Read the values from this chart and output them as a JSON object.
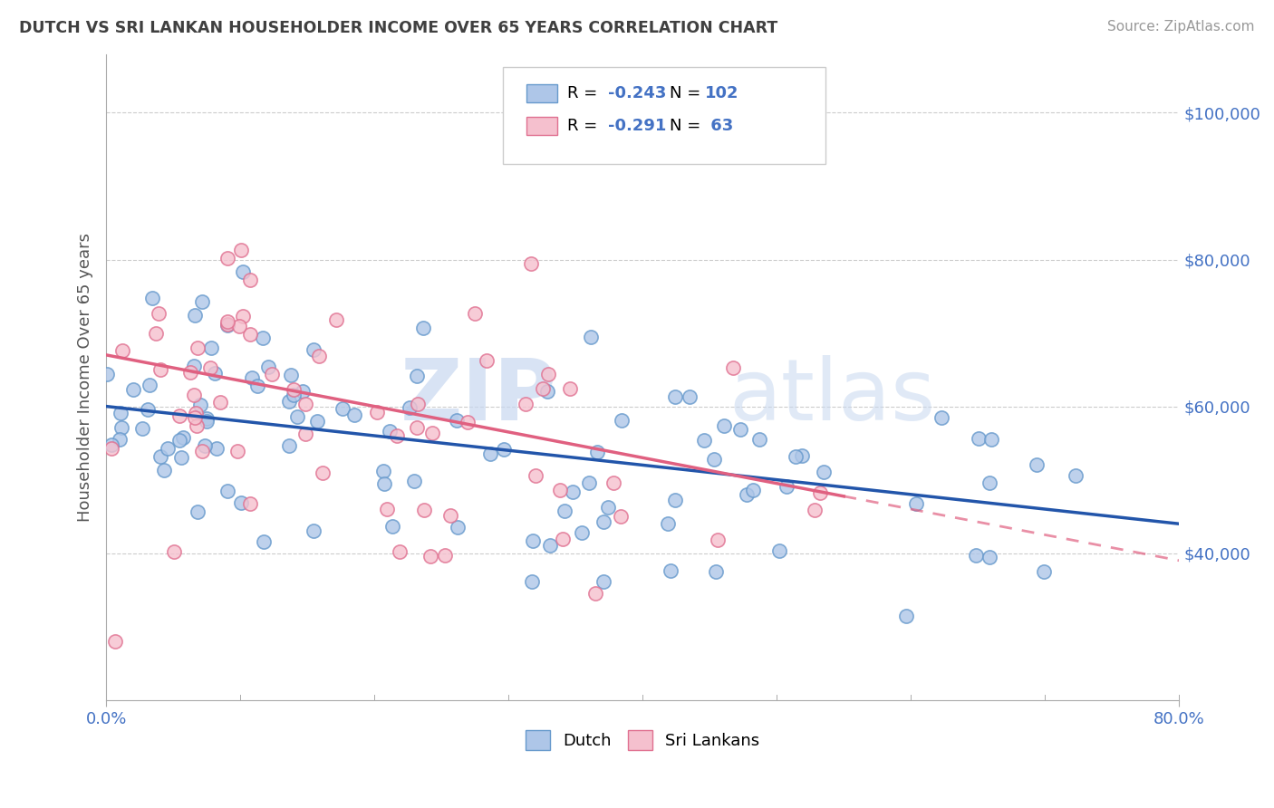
{
  "title": "DUTCH VS SRI LANKAN HOUSEHOLDER INCOME OVER 65 YEARS CORRELATION CHART",
  "source_text": "Source: ZipAtlas.com",
  "ylabel": "Householder Income Over 65 years",
  "xlim": [
    0.0,
    0.8
  ],
  "ylim": [
    20000,
    108000
  ],
  "yticks": [
    40000,
    60000,
    80000,
    100000
  ],
  "ytick_labels": [
    "$40,000",
    "$60,000",
    "$80,000",
    "$100,000"
  ],
  "xtick_labels": [
    "0.0%",
    "80.0%"
  ],
  "dutch_color": "#aec6e8",
  "dutch_edge_color": "#6699cc",
  "srilankan_color": "#f5c0ce",
  "srilankan_edge_color": "#e07090",
  "dutch_line_color": "#2255aa",
  "srilankan_line_color": "#e06080",
  "dutch_R": -0.243,
  "dutch_N": 102,
  "srilankan_R": -0.291,
  "srilankan_N": 63,
  "dutch_intercept": 60000,
  "dutch_slope": -20000,
  "srilankan_intercept": 67000,
  "srilankan_slope": -35000,
  "background_color": "#ffffff",
  "grid_color": "#cccccc",
  "axis_label_color": "#4472c4",
  "title_color": "#404040",
  "source_color": "#999999",
  "watermark_color": "#c8d8f0"
}
